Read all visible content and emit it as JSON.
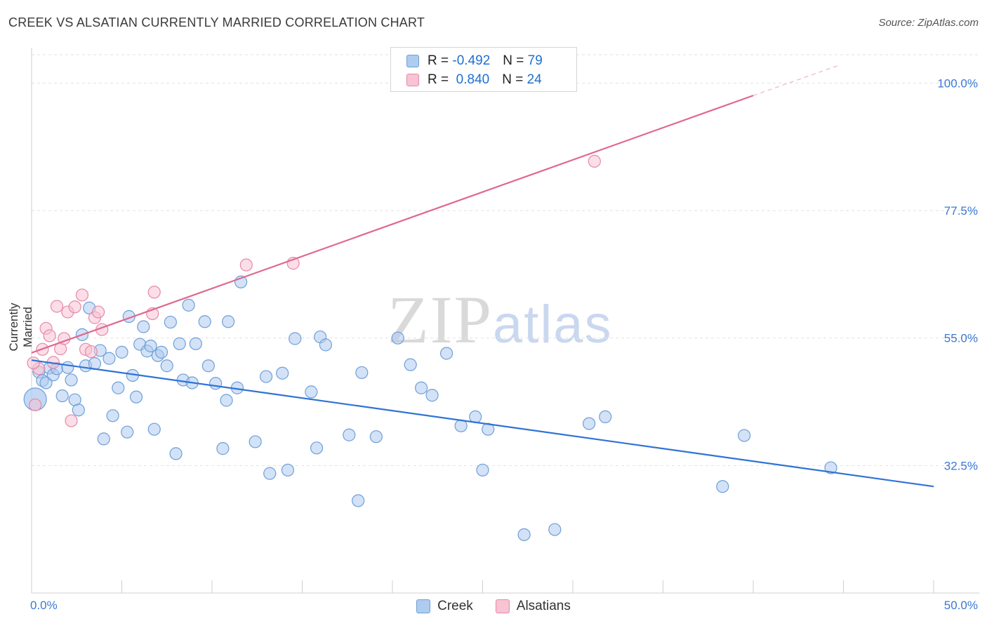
{
  "title": "CREEK VS ALSATIAN CURRENTLY MARRIED CORRELATION CHART",
  "source": "Source: ZipAtlas.com",
  "watermark": {
    "zip": "ZIP",
    "atlas": "atlas"
  },
  "stats": [
    {
      "r_label": "R =",
      "r_value": "-0.492",
      "n_label": "N =",
      "n_value": "79",
      "color": "#aecbf0",
      "border": "#6f9fd8"
    },
    {
      "r_label": "R =",
      "r_value": " 0.840",
      "n_label": "N =",
      "n_value": "24",
      "color": "#f8c3d3",
      "border": "#e58aa8"
    }
  ],
  "legend": [
    {
      "label": "Creek",
      "color": "#aecbf0",
      "border": "#6f9fd8"
    },
    {
      "label": "Alsatians",
      "color": "#f8c3d3",
      "border": "#e58aa8"
    }
  ],
  "chart_data": {
    "type": "scatter",
    "title": "CREEK VS ALSATIAN CURRENTLY MARRIED CORRELATION CHART",
    "xlabel": "",
    "ylabel": "Currently Married",
    "xlim": [
      0,
      50
    ],
    "ylim": [
      10,
      105
    ],
    "x_tick_labels": [
      {
        "value": 0,
        "label": "0.0%"
      },
      {
        "value": 50,
        "label": "50.0%"
      }
    ],
    "y_tick_labels": [
      {
        "value": 32.5,
        "label": "32.5%"
      },
      {
        "value": 55.0,
        "label": "55.0%"
      },
      {
        "value": 77.5,
        "label": "77.5%"
      },
      {
        "value": 100.0,
        "label": "100.0%"
      }
    ],
    "grid": true,
    "legend_position": "bottom-center",
    "series": [
      {
        "name": "Creek",
        "color": "#6f9fd8",
        "fill": "#aecbf0",
        "trend": {
          "x": [
            0,
            50
          ],
          "y": [
            51.1,
            28.8
          ],
          "color": "#2f72d6"
        },
        "points": [
          [
            0.2,
            44.2
          ],
          [
            0.4,
            49.0
          ],
          [
            0.6,
            47.5
          ],
          [
            0.8,
            47.1
          ],
          [
            1.0,
            49.7
          ],
          [
            1.2,
            48.5
          ],
          [
            1.4,
            49.6
          ],
          [
            1.7,
            44.8
          ],
          [
            2.0,
            49.8
          ],
          [
            2.2,
            47.6
          ],
          [
            2.4,
            44.1
          ],
          [
            2.6,
            42.3
          ],
          [
            2.8,
            55.6
          ],
          [
            3.0,
            50.1
          ],
          [
            3.2,
            60.3
          ],
          [
            3.5,
            50.5
          ],
          [
            3.8,
            52.8
          ],
          [
            4.0,
            37.2
          ],
          [
            4.3,
            51.4
          ],
          [
            4.5,
            41.3
          ],
          [
            4.8,
            46.2
          ],
          [
            5.0,
            52.5
          ],
          [
            5.3,
            38.4
          ],
          [
            5.4,
            58.8
          ],
          [
            5.6,
            48.4
          ],
          [
            5.8,
            44.6
          ],
          [
            6.0,
            53.9
          ],
          [
            6.2,
            57.0
          ],
          [
            6.4,
            52.7
          ],
          [
            6.6,
            53.6
          ],
          [
            6.8,
            38.9
          ],
          [
            7.0,
            51.9
          ],
          [
            7.2,
            52.5
          ],
          [
            7.5,
            50.1
          ],
          [
            7.7,
            57.8
          ],
          [
            8.0,
            34.6
          ],
          [
            8.2,
            54.0
          ],
          [
            8.4,
            47.6
          ],
          [
            8.7,
            60.8
          ],
          [
            8.9,
            47.1
          ],
          [
            9.1,
            54.0
          ],
          [
            9.6,
            57.9
          ],
          [
            9.8,
            50.1
          ],
          [
            10.2,
            47.0
          ],
          [
            10.6,
            35.5
          ],
          [
            10.8,
            44.0
          ],
          [
            10.9,
            57.9
          ],
          [
            11.4,
            46.2
          ],
          [
            11.6,
            64.9
          ],
          [
            12.4,
            36.7
          ],
          [
            13.0,
            48.2
          ],
          [
            13.2,
            31.1
          ],
          [
            13.9,
            48.8
          ],
          [
            14.2,
            31.7
          ],
          [
            14.6,
            54.9
          ],
          [
            15.5,
            45.5
          ],
          [
            15.8,
            35.6
          ],
          [
            16.0,
            55.2
          ],
          [
            16.3,
            53.8
          ],
          [
            17.6,
            37.9
          ],
          [
            18.1,
            26.3
          ],
          [
            18.3,
            48.9
          ],
          [
            19.1,
            37.6
          ],
          [
            20.3,
            55.0
          ],
          [
            21.0,
            50.3
          ],
          [
            21.6,
            46.2
          ],
          [
            22.2,
            44.9
          ],
          [
            23.0,
            52.3
          ],
          [
            23.8,
            39.5
          ],
          [
            24.6,
            41.1
          ],
          [
            25.0,
            31.7
          ],
          [
            25.3,
            38.9
          ],
          [
            27.3,
            20.3
          ],
          [
            29.0,
            21.2
          ],
          [
            30.9,
            39.9
          ],
          [
            31.8,
            41.1
          ],
          [
            38.3,
            28.8
          ],
          [
            39.5,
            37.8
          ],
          [
            44.3,
            32.1
          ]
        ]
      },
      {
        "name": "Alsatians",
        "color": "#e58aa8",
        "fill": "#f8c3d3",
        "trend": {
          "x": [
            0,
            40
          ],
          "y": [
            52.4,
            97.8
          ],
          "color": "#e0688f"
        },
        "trend_extension": {
          "x": [
            40,
            44.8
          ],
          "y": [
            97.8,
            103.2
          ]
        },
        "points": [
          [
            0.2,
            43.2
          ],
          [
            0.4,
            49.6
          ],
          [
            0.6,
            53.0
          ],
          [
            0.8,
            56.7
          ],
          [
            1.0,
            55.4
          ],
          [
            1.2,
            50.7
          ],
          [
            1.4,
            60.6
          ],
          [
            1.6,
            53.1
          ],
          [
            1.8,
            54.9
          ],
          [
            2.0,
            59.6
          ],
          [
            2.2,
            40.4
          ],
          [
            2.4,
            60.5
          ],
          [
            2.8,
            62.6
          ],
          [
            3.0,
            53.0
          ],
          [
            3.3,
            52.6
          ],
          [
            3.5,
            58.6
          ],
          [
            3.7,
            59.6
          ],
          [
            3.9,
            56.5
          ],
          [
            6.7,
            59.3
          ],
          [
            6.8,
            63.1
          ],
          [
            11.9,
            67.9
          ],
          [
            14.5,
            68.2
          ],
          [
            31.2,
            86.2
          ],
          [
            0.1,
            50.6
          ]
        ]
      }
    ]
  }
}
